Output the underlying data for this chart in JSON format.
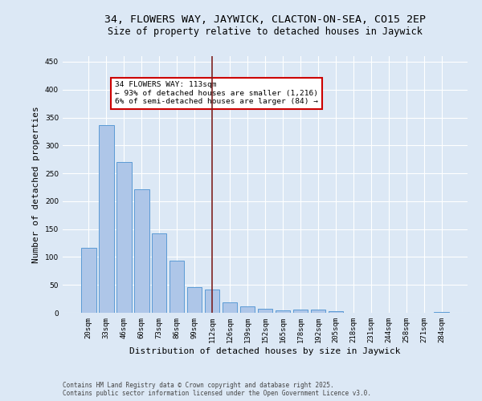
{
  "title1": "34, FLOWERS WAY, JAYWICK, CLACTON-ON-SEA, CO15 2EP",
  "title2": "Size of property relative to detached houses in Jaywick",
  "xlabel": "Distribution of detached houses by size in Jaywick",
  "ylabel": "Number of detached properties",
  "categories": [
    "20sqm",
    "33sqm",
    "46sqm",
    "60sqm",
    "73sqm",
    "86sqm",
    "99sqm",
    "112sqm",
    "126sqm",
    "139sqm",
    "152sqm",
    "165sqm",
    "178sqm",
    "192sqm",
    "205sqm",
    "218sqm",
    "231sqm",
    "244sqm",
    "258sqm",
    "271sqm",
    "284sqm"
  ],
  "values": [
    116,
    337,
    270,
    222,
    142,
    94,
    46,
    41,
    19,
    11,
    7,
    5,
    6,
    6,
    3,
    0,
    0,
    0,
    0,
    0,
    2
  ],
  "bar_color": "#aec6e8",
  "bar_edge_color": "#5b9bd5",
  "vline_color": "#7b2020",
  "annotation_text": "34 FLOWERS WAY: 113sqm\n← 93% of detached houses are smaller (1,216)\n6% of semi-detached houses are larger (84) →",
  "annotation_box_color": "#ffffff",
  "annotation_box_edge": "#cc0000",
  "ylim": [
    0,
    460
  ],
  "yticks": [
    0,
    50,
    100,
    150,
    200,
    250,
    300,
    350,
    400,
    450
  ],
  "background_color": "#dce8f5",
  "plot_bg_color": "#dce8f5",
  "footer_line1": "Contains HM Land Registry data © Crown copyright and database right 2025.",
  "footer_line2": "Contains public sector information licensed under the Open Government Licence v3.0.",
  "title_fontsize": 9.5,
  "subtitle_fontsize": 8.5,
  "axis_label_fontsize": 8,
  "tick_fontsize": 6.5,
  "footer_fontsize": 5.5
}
